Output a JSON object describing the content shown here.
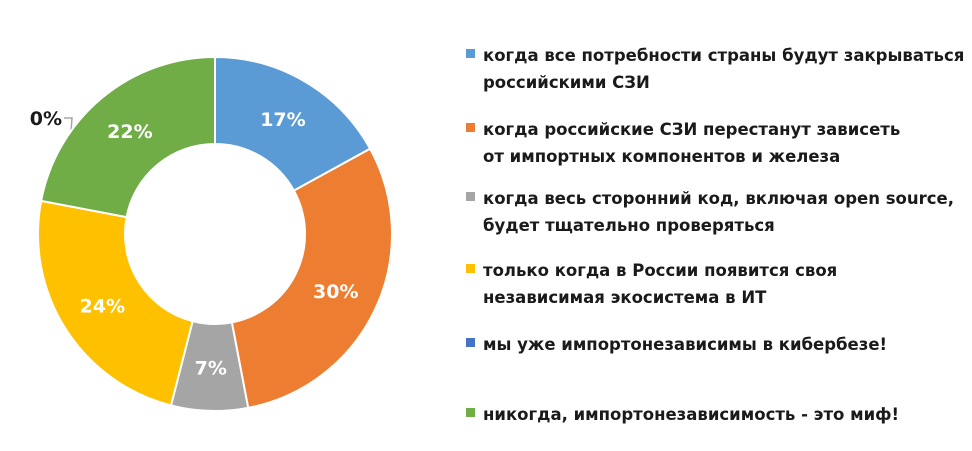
{
  "chart_data": {
    "type": "pie",
    "donut": true,
    "categories": [
      "когда все потребности страны будут закрываться российскими СЗИ",
      "когда российские СЗИ перестанут зависеть от импортных компонентов и железа",
      "когда весь сторонний код, включая open source, будет тщательно проверяться",
      "только когда в России появится своя независимая экосистема в ИТ",
      "мы уже импортонезависимы в кибербезе!",
      "никогда, импортонезависимость - это миф!"
    ],
    "legend_lines": [
      [
        "когда все потребности страны будут закрываться",
        "российскими СЗИ"
      ],
      [
        "когда российские СЗИ перестанут зависеть",
        "от импортных компонентов и железа"
      ],
      [
        "когда весь сторонний код, включая open source,",
        "будет тщательно проверяться"
      ],
      [
        "только когда в России появится своя",
        "независимая экосистема в ИТ"
      ],
      [
        "мы уже импортонезависимы в кибербезе!"
      ],
      [
        "никогда, импортонезависимость - это миф!"
      ]
    ],
    "values": [
      17,
      30,
      7,
      24,
      0,
      22
    ],
    "data_labels": [
      "17%",
      "30%",
      "7%",
      "24%",
      "0%",
      "22%"
    ],
    "colors": [
      "#5B9BD5",
      "#ED7D31",
      "#A5A5A5",
      "#FFC000",
      "#4472C4",
      "#70AD47"
    ],
    "legend_position": "right"
  }
}
